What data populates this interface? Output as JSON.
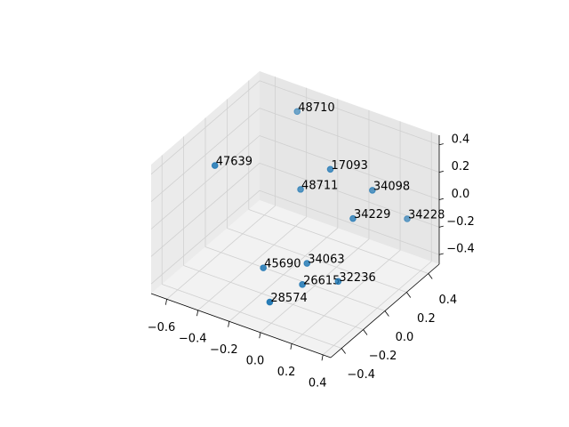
{
  "chart_data": {
    "type": "scatter3d",
    "x": [
      -0.39,
      -0.5,
      0.1,
      -0.16,
      0.3,
      0.245,
      0.384,
      -0.19,
      0.02,
      0.06,
      0.22,
      -0.01
    ],
    "y": [
      0.4,
      -0.2,
      0.0,
      0.1,
      0.1,
      0.0,
      0.3,
      -0.2,
      -0.1,
      -0.2,
      -0.1,
      -0.4
    ],
    "z": [
      0.37,
      0.34,
      0.42,
      0.1,
      0.28,
      0.12,
      -0.03,
      -0.28,
      -0.23,
      -0.3,
      -0.28,
      -0.32
    ],
    "point_labels": [
      "48710",
      "47639",
      "17093",
      "48711",
      "34098",
      "34229",
      "34228",
      "45690",
      "34063",
      "26615",
      "32236",
      "28574"
    ],
    "color": "#1f77b4",
    "xlim": [
      -0.7,
      0.45
    ],
    "ylim": [
      -0.5,
      0.5
    ],
    "zlim": [
      -0.47,
      0.47
    ],
    "xticks": [
      {
        "value": -0.6,
        "label": "−0.6"
      },
      {
        "value": -0.4,
        "label": "−0.4"
      },
      {
        "value": -0.2,
        "label": "−0.2"
      },
      {
        "value": 0,
        "label": "0.0"
      },
      0.2,
      0.4
    ],
    "yticks": [
      {
        "value": -0.4,
        "label": "−0.4"
      },
      {
        "value": -0.2,
        "label": "−0.2"
      },
      {
        "value": 0,
        "label": "0.0"
      },
      0.2,
      0.4
    ],
    "zticks": [
      {
        "value": -0.4,
        "label": "−0.4"
      },
      {
        "value": -0.2,
        "label": "−0.2"
      },
      {
        "value": 0,
        "label": "0.0"
      },
      0.2,
      0.4
    ],
    "grid": true
  }
}
